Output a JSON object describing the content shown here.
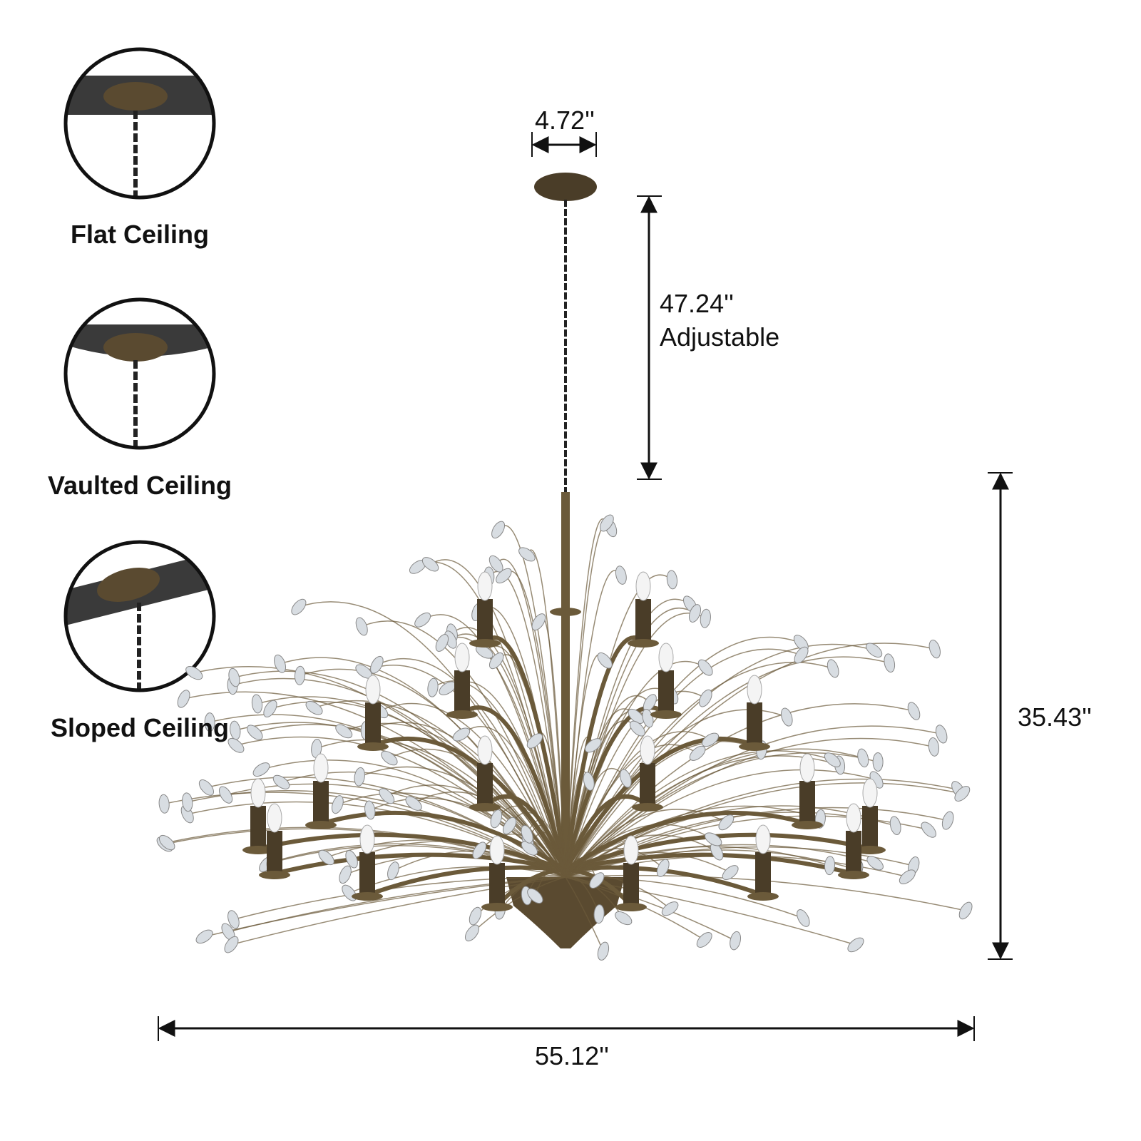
{
  "mounting_options": [
    {
      "label": "Flat Ceiling",
      "icon": "flat-ceiling-icon"
    },
    {
      "label": "Vaulted Ceiling",
      "icon": "vaulted-ceiling-icon"
    },
    {
      "label": "Sloped Ceiling",
      "icon": "sloped-ceiling-icon"
    }
  ],
  "dimensions": {
    "canopy_width": "4.72''",
    "chain_length": "47.24''",
    "chain_note": "Adjustable",
    "height": "35.43''",
    "width": "55.12''"
  },
  "colors": {
    "metal": "#6b5a3a",
    "ceiling": "#3a3a3a",
    "crystal": "#d8dde2"
  }
}
